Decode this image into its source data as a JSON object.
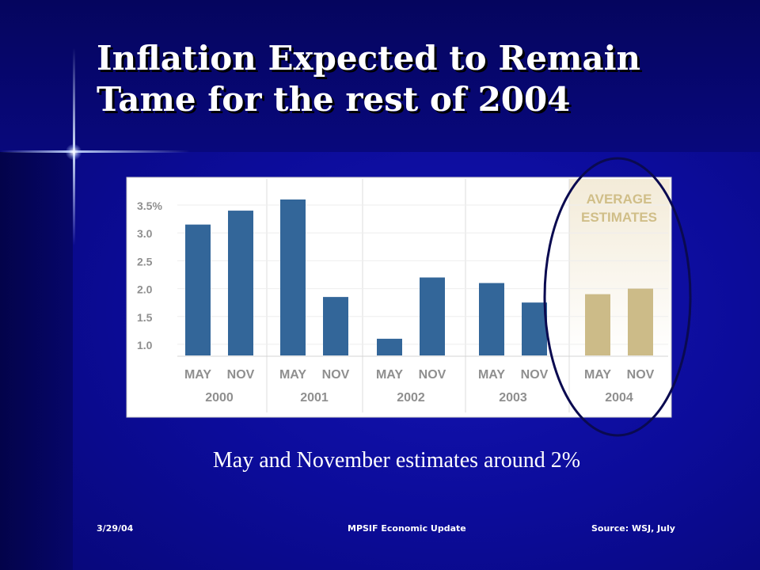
{
  "slide": {
    "title": "Inflation Expected to Remain Tame for the rest of 2004",
    "subtitle": "May and November estimates around 2%",
    "footer": {
      "date": "3/29/04",
      "center": "MPSIF Economic Update",
      "source": "Source: WSJ, July"
    }
  },
  "chart_data": {
    "type": "bar",
    "title": "",
    "xlabel": "",
    "ylabel": "",
    "ylim": [
      0.8,
      3.6
    ],
    "y_ticks": [
      {
        "value": 1.0,
        "label": "1.0"
      },
      {
        "value": 1.5,
        "label": "1.5"
      },
      {
        "value": 2.0,
        "label": "2.0"
      },
      {
        "value": 2.5,
        "label": "2.5"
      },
      {
        "value": 3.0,
        "label": "3.0"
      },
      {
        "value": 3.5,
        "label": "3.5%"
      }
    ],
    "groups": [
      "2000",
      "2001",
      "2002",
      "2003",
      "2004"
    ],
    "categories": [
      "MAY",
      "NOV",
      "MAY",
      "NOV",
      "MAY",
      "NOV",
      "MAY",
      "NOV",
      "MAY",
      "NOV"
    ],
    "values": [
      3.15,
      3.4,
      3.6,
      1.85,
      1.1,
      2.2,
      2.1,
      1.75,
      1.9,
      2.0
    ],
    "highlight_label": [
      "AVERAGE",
      "ESTIMATES"
    ],
    "highlight_group": "2004",
    "grid": false,
    "colors": {
      "actual": "#336699",
      "estimate": "#ccbb88",
      "highlight_text": "#d0be88",
      "tick_text": "#8f8f8f",
      "ellipse": "#0a0a50"
    }
  }
}
